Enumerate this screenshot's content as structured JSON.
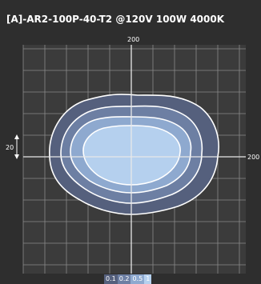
{
  "chart_data": {
    "type": "isolux-contour",
    "title": "[A]-AR2-100P-40-T2 @120V 100W 4000K",
    "axis_label_top": "200",
    "axis_label_right": "200",
    "scale_label": "20",
    "grid": true,
    "levels": [
      {
        "label": "0.1",
        "value": 0.1,
        "color": "#55607d"
      },
      {
        "label": "0.2",
        "value": 0.2,
        "color": "#6d7fa3"
      },
      {
        "label": "0.5",
        "value": 0.5,
        "color": "#8ea9cf"
      },
      {
        "label": "1",
        "value": 1,
        "color": "#b5d0ee"
      }
    ],
    "colors": {
      "background": "#2e2e2e",
      "plot_background": "#3b3b3b",
      "grid": "#8a8a8a",
      "contour_stroke": "#ffffff"
    }
  }
}
